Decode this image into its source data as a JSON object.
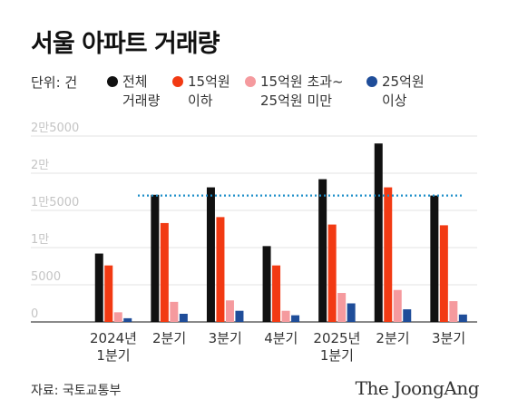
{
  "title": "서울 아파트 거래량",
  "legend": {
    "unit": "단위: 건",
    "items": [
      {
        "label": "전체\n거래량",
        "color": "#111111"
      },
      {
        "label": "15억원\n이하",
        "color": "#f23a13"
      },
      {
        "label": "15억원 초과~\n25억원 미만",
        "color": "#f59a9e"
      },
      {
        "label": "25억원\n이상",
        "color": "#1f4d99"
      }
    ]
  },
  "chart_data": {
    "type": "bar",
    "categories": [
      "2024년\n1분기",
      "2분기",
      "3분기",
      "4분기",
      "2025년\n1분기",
      "2분기",
      "3분기"
    ],
    "series": [
      {
        "name": "전체 거래량",
        "color": "#111111",
        "values": [
          9200,
          17100,
          18100,
          10200,
          19200,
          24000,
          17000
        ]
      },
      {
        "name": "15억원 이하",
        "color": "#f23a13",
        "values": [
          7600,
          13300,
          14100,
          7600,
          13100,
          18100,
          13000
        ]
      },
      {
        "name": "15억원 초과~25억원 미만",
        "color": "#f59a9e",
        "values": [
          1300,
          2700,
          2900,
          1500,
          3900,
          4300,
          2800
        ]
      },
      {
        "name": "25억원 이상",
        "color": "#1f4d99",
        "values": [
          500,
          1100,
          1500,
          900,
          2500,
          1700,
          1000
        ]
      }
    ],
    "yticks": [
      {
        "value": 0,
        "label": "0"
      },
      {
        "value": 5000,
        "label": "5000"
      },
      {
        "value": 10000,
        "label": "1만"
      },
      {
        "value": 15000,
        "label": "1만5000"
      },
      {
        "value": 20000,
        "label": "2만"
      },
      {
        "value": 25000,
        "label": "2만5000"
      }
    ],
    "ylim": [
      0,
      25000
    ],
    "reference_line": {
      "value": 17000,
      "color": "#1f8fc9",
      "style": "dotted"
    },
    "grid": true
  },
  "footer": {
    "source": "자료: 국토교통부",
    "brand": "The JoongAng"
  }
}
